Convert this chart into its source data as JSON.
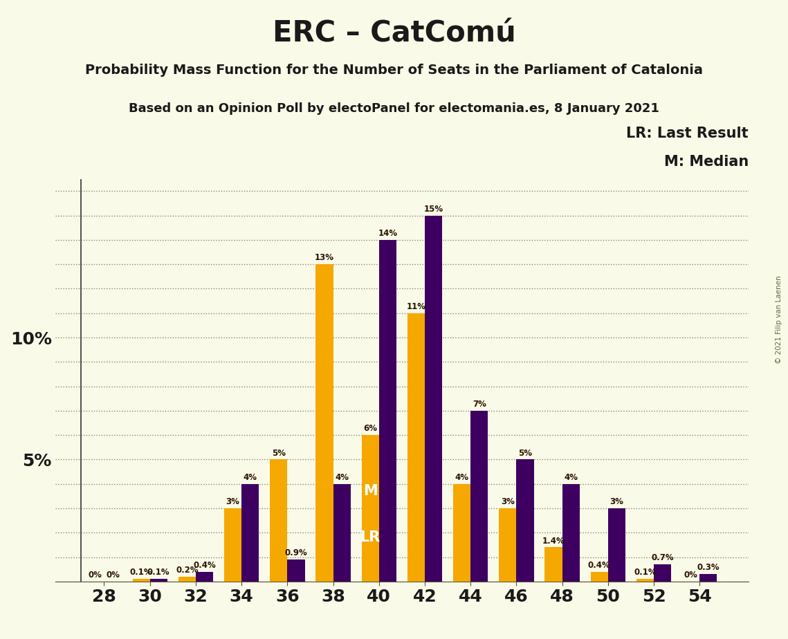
{
  "title": "ERC – CatComú",
  "subtitle1": "Probability Mass Function for the Number of Seats in the Parliament of Catalonia",
  "subtitle2": "Based on an Opinion Poll by electoPanel for electomania.es, 8 January 2021",
  "copyright": "© 2021 Filip van Laenen",
  "legend_lr": "LR: Last Result",
  "legend_m": "M: Median",
  "background_color": "#FAFAE8",
  "orange_color": "#F5A800",
  "purple_color": "#3D0060",
  "seats": [
    28,
    30,
    32,
    34,
    36,
    38,
    40,
    42,
    44,
    46,
    48,
    50,
    52,
    54
  ],
  "orange_values": [
    0.0,
    0.1,
    0.2,
    3.0,
    5.0,
    13.0,
    6.0,
    11.0,
    4.0,
    3.0,
    1.4,
    0.4,
    0.1,
    0.0
  ],
  "purple_values": [
    0.0,
    0.1,
    0.4,
    4.0,
    0.9,
    4.0,
    14.0,
    15.0,
    7.0,
    5.0,
    4.0,
    3.0,
    0.7,
    0.3
  ],
  "orange_labels": [
    "0%",
    "0.1%",
    "0.2%",
    "3%",
    "5%",
    "13%",
    "6%",
    "11%",
    "4%",
    "3%",
    "1.4%",
    "0.4%",
    "0.1%",
    "0%"
  ],
  "purple_labels": [
    "0%",
    "0.1%",
    "0.4%",
    "4%",
    "0.9%",
    "4%",
    "14%",
    "15%",
    "7%",
    "5%",
    "4%",
    "3%",
    "0.7%",
    "0.3%"
  ],
  "median_seat": 40,
  "lr_seat": 40,
  "ylim": [
    0,
    16.5
  ],
  "ytick_labels_show": [
    5,
    10
  ],
  "bar_width": 0.38,
  "title_fontsize": 30,
  "subtitle1_fontsize": 14,
  "subtitle2_fontsize": 13,
  "label_fontsize": 8.5,
  "tick_fontsize": 18,
  "legend_fontsize": 15,
  "figsize": [
    11.39,
    9.24
  ],
  "dpi": 100
}
